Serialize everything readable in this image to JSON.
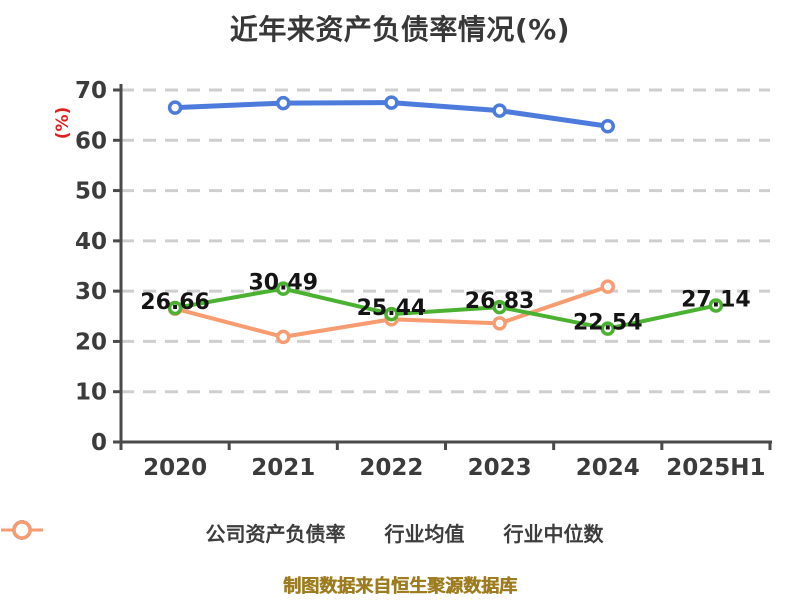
{
  "title": "近年来资产负债率情况(%)",
  "footer": "制图数据来自恒生聚源数据库",
  "colors": {
    "company": "#4bb131",
    "industry_avg": "#4d7bdc",
    "industry_median": "#f79b71",
    "grid": "#cfcfcf",
    "axis": "#4a4a4a",
    "y_axis_label": "#e01f1f",
    "title_text": "#383838",
    "data_label": "#141414",
    "footer_text": "#9d7c20"
  },
  "chart_data": {
    "type": "line",
    "title": "近年来资产负债率情况(%)",
    "xlabel": "",
    "ylabel": "(%)",
    "categories": [
      "2020",
      "2021",
      "2022",
      "2023",
      "2024",
      "2025H1"
    ],
    "series": [
      {
        "name": "公司资产负债率",
        "color": "#4bb131",
        "values": [
          26.66,
          30.49,
          25.44,
          26.83,
          22.54,
          27.14
        ],
        "labeled": true,
        "data_labels": [
          "26.66",
          "30.49",
          "25.44",
          "26.83",
          "22.54",
          "27.14"
        ]
      },
      {
        "name": "行业均值",
        "color": "#4d7bdc",
        "values": [
          66.5,
          67.4,
          67.5,
          65.9,
          62.8,
          null
        ],
        "labeled": false
      },
      {
        "name": "行业中位数",
        "color": "#f79b71",
        "values": [
          26.5,
          20.9,
          24.4,
          23.6,
          30.9,
          null
        ],
        "labeled": false
      }
    ],
    "ylim": [
      0,
      70
    ],
    "y_ticks": [
      0,
      10,
      20,
      30,
      40,
      50,
      60,
      70
    ],
    "grid": "horizontal-dashed",
    "legend_position": "bottom"
  }
}
